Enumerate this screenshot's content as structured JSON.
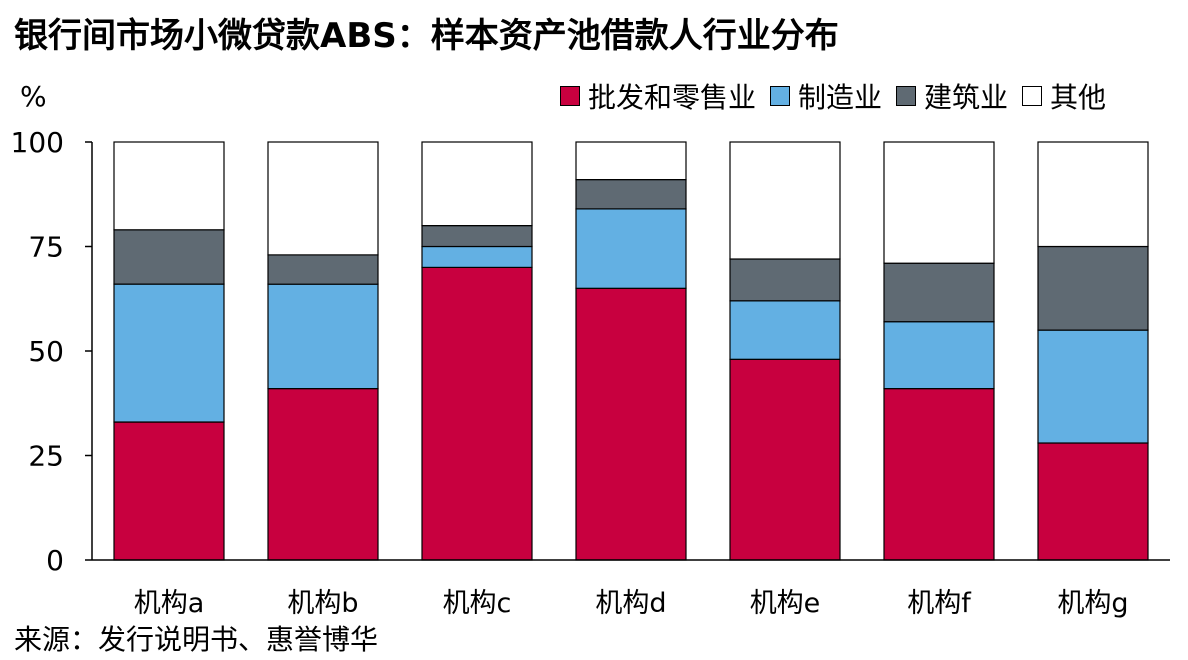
{
  "title": "银行间市场小微贷款ABS：样本资产池借款人行业分布",
  "unit_label": "%",
  "source": "来源：发行说明书、惠誉博华",
  "colors": {
    "wholesale_retail": "#c8003f",
    "manufacturing": "#63b0e3",
    "construction": "#5f6a73",
    "other": "#ffffff"
  },
  "chart_data": {
    "type": "bar",
    "stacked": true,
    "categories": [
      "机构a",
      "机构b",
      "机构c",
      "机构d",
      "机构e",
      "机构f",
      "机构g"
    ],
    "series": [
      {
        "name": "批发和零售业",
        "color": "#c8003f",
        "values": [
          33,
          41,
          70,
          65,
          48,
          41,
          28
        ]
      },
      {
        "name": "制造业",
        "color": "#63b0e3",
        "values": [
          33,
          25,
          5,
          19,
          14,
          16,
          27
        ]
      },
      {
        "name": "建筑业",
        "color": "#5f6a73",
        "values": [
          13,
          7,
          5,
          7,
          10,
          14,
          20
        ]
      },
      {
        "name": "其他",
        "color": "#ffffff",
        "values": [
          21,
          27,
          20,
          9,
          28,
          29,
          25
        ]
      }
    ],
    "ylim": [
      0,
      100
    ],
    "yticks": [
      0,
      25,
      50,
      75,
      100
    ],
    "xlabel": "",
    "ylabel": "%",
    "legend_position": "top-right",
    "grid": false
  }
}
